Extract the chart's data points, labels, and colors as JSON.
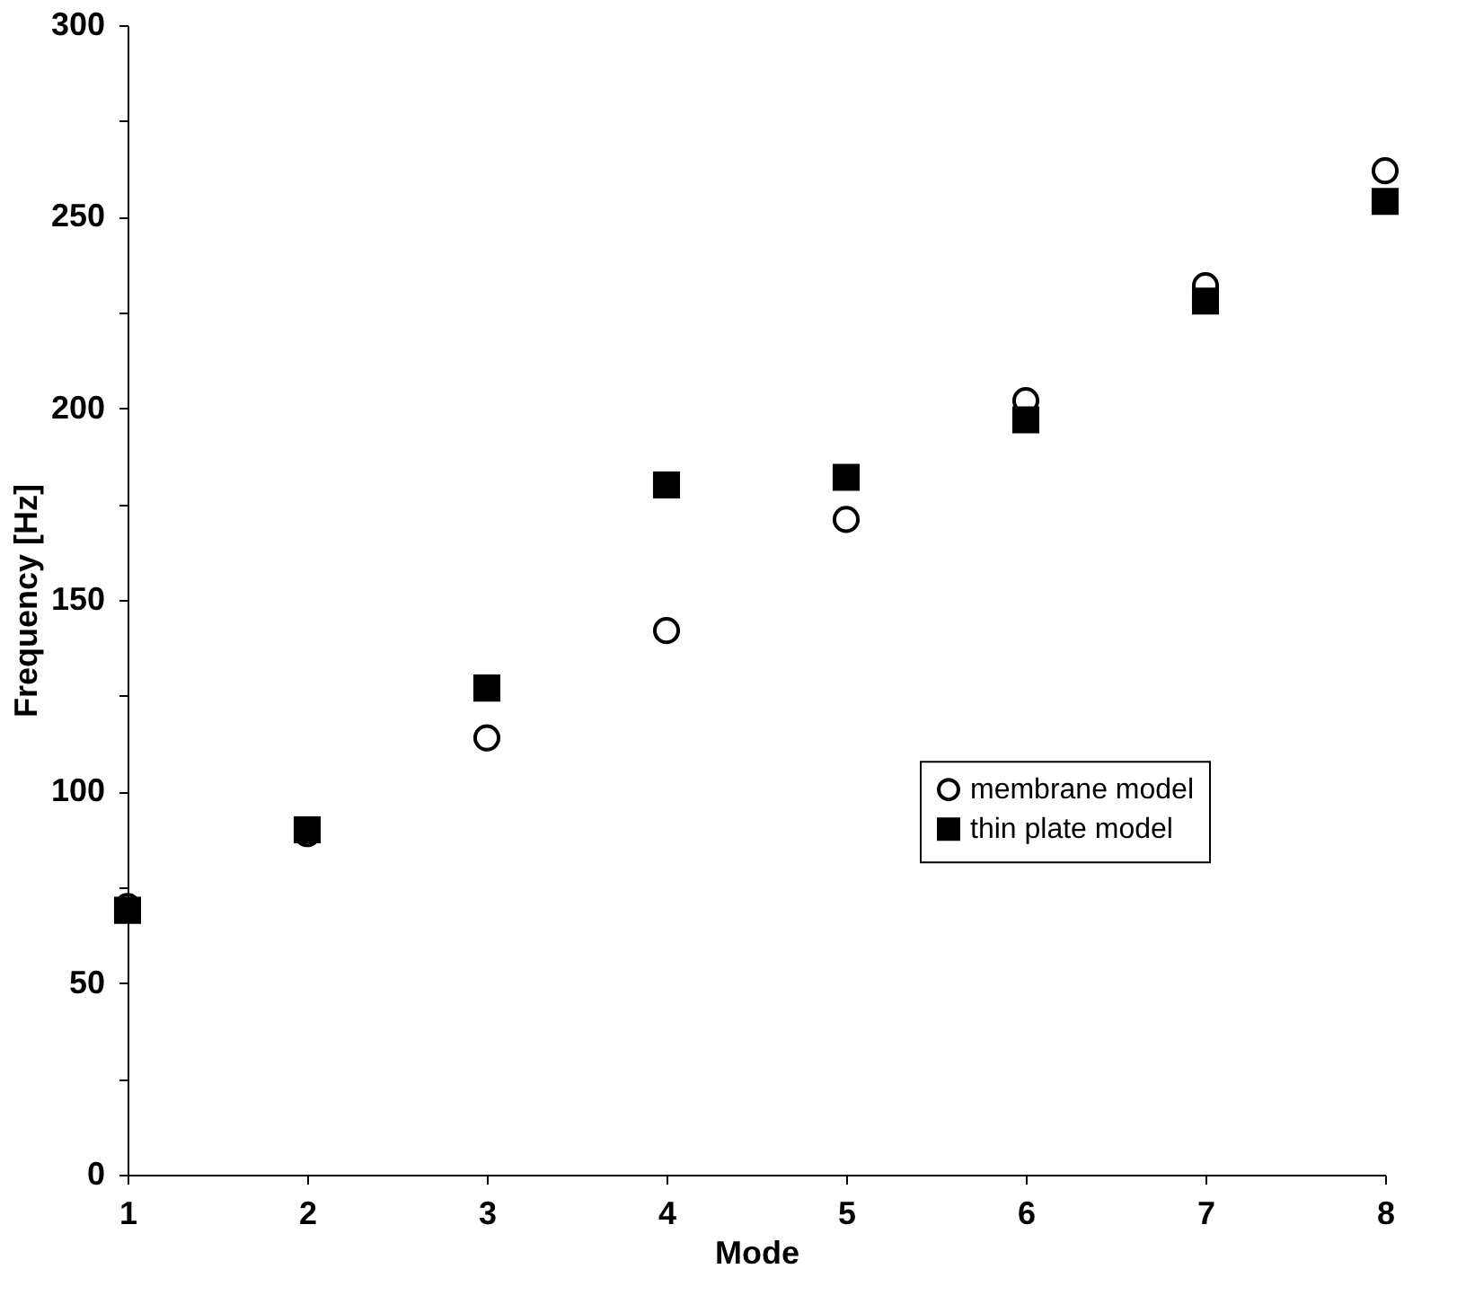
{
  "chart_data": {
    "type": "scatter",
    "xlabel": "Mode",
    "ylabel": "Frequency [Hz]",
    "x": [
      1,
      2,
      3,
      4,
      5,
      6,
      7,
      8
    ],
    "series": [
      {
        "name": "membrane model",
        "color": "#000000",
        "marker": "circle",
        "values": [
          70,
          89,
          114,
          142,
          171,
          202,
          232,
          262
        ]
      },
      {
        "name": "thin plate model",
        "color": "#000000",
        "marker": "square",
        "values": [
          69,
          90,
          127,
          180,
          182,
          197,
          228,
          254
        ]
      }
    ],
    "xlim": [
      1,
      8
    ],
    "xticks": [
      1,
      2,
      3,
      4,
      5,
      6,
      7,
      8
    ],
    "ylim": [
      0,
      300
    ],
    "yticks": [
      0,
      {
        "value": 25,
        "label": null
      },
      50,
      {
        "value": 75,
        "label": null
      },
      100,
      {
        "value": 125,
        "label": null
      },
      150,
      {
        "value": 175,
        "label": null
      },
      200,
      {
        "value": 225,
        "label": null
      },
      250,
      {
        "value": 275,
        "label": null
      },
      300
    ],
    "grid": false,
    "legend": "right"
  }
}
